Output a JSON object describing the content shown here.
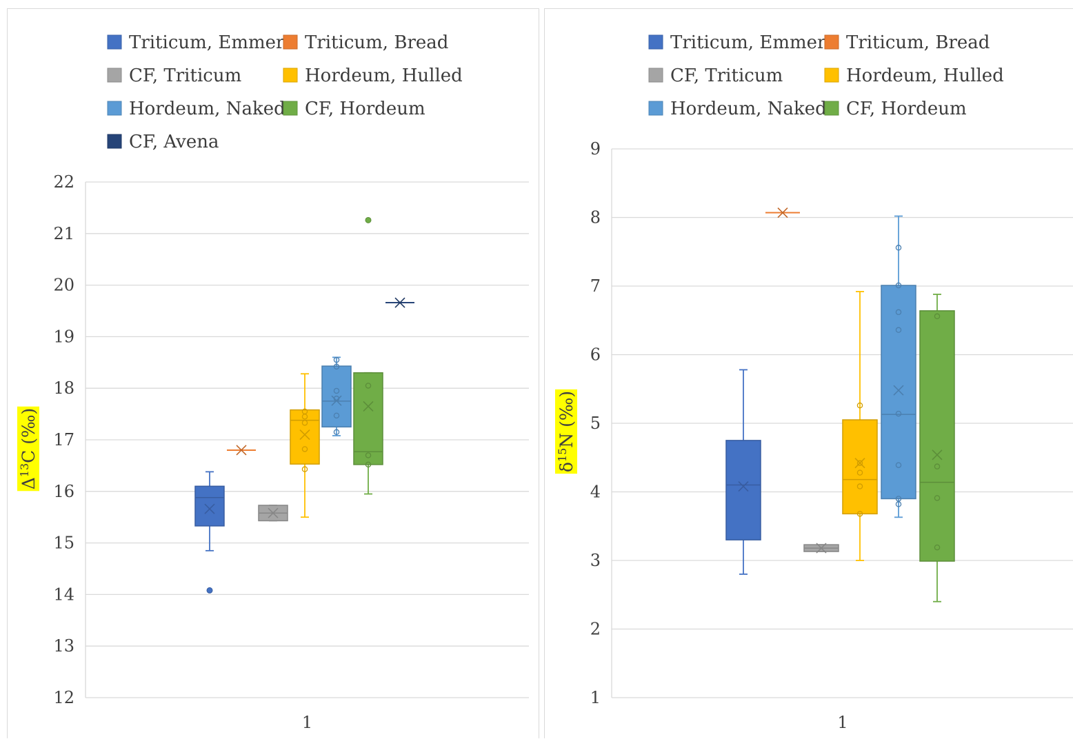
{
  "chart_data": [
    {
      "type": "box",
      "ylabel": "Δ13C (‰)",
      "ylabel_main": "Δ",
      "ylabel_sup": "13",
      "ylabel_rest": "C (‰)",
      "ylabel_highlight": "#ffff00",
      "ylim": [
        12,
        22
      ],
      "yticks": [
        "12",
        "13",
        "14",
        "15",
        "16",
        "17",
        "18",
        "19",
        "20",
        "21",
        "22"
      ],
      "categories": [
        "1"
      ],
      "grid": true,
      "legend_position": "top",
      "legend": [
        "Triticum, Emmer",
        "Triticum, Bread",
        "CF, Triticum",
        "Hordeum, Hulled",
        "Hordeum, Naked",
        "CF, Hordeum",
        "CF, Avena"
      ],
      "series": [
        {
          "name": "Triticum, Emmer",
          "color": "#4472c4",
          "min": 14.85,
          "q1": 15.33,
          "median": 15.88,
          "q3": 16.1,
          "max": 16.38,
          "mean": 15.66,
          "points": [],
          "outliers": [
            14.08
          ]
        },
        {
          "name": "Triticum, Bread",
          "color": "#ed7d31",
          "min": 16.8,
          "q1": 16.8,
          "median": 16.8,
          "q3": 16.8,
          "max": 16.8,
          "mean": 16.8,
          "points": [],
          "outliers": []
        },
        {
          "name": "CF, Triticum",
          "color": "#a5a5a5",
          "min": 15.43,
          "q1": 15.43,
          "median": 15.58,
          "q3": 15.73,
          "max": 15.73,
          "mean": 15.58,
          "points": [],
          "outliers": []
        },
        {
          "name": "Hordeum, Hulled",
          "color": "#ffc000",
          "min": 15.5,
          "q1": 16.53,
          "median": 17.38,
          "q3": 17.58,
          "max": 18.28,
          "mean": 17.1,
          "points": [
            17.55,
            17.45,
            17.33,
            16.82,
            16.43
          ],
          "outliers": []
        },
        {
          "name": "Hordeum, Naked",
          "color": "#5b9bd5",
          "min": 17.08,
          "q1": 17.25,
          "median": 17.75,
          "q3": 18.43,
          "max": 18.6,
          "mean": 17.76,
          "points": [
            18.55,
            18.42,
            17.95,
            17.8,
            17.47,
            17.15
          ],
          "outliers": []
        },
        {
          "name": "CF, Hordeum",
          "color": "#70ad47",
          "min": 15.95,
          "q1": 16.52,
          "median": 16.77,
          "q3": 18.3,
          "max": 18.3,
          "mean": 17.65,
          "points": [
            18.05,
            16.7,
            16.52
          ],
          "outliers": [
            21.26
          ]
        },
        {
          "name": "CF, Avena",
          "color": "#264478",
          "min": 19.66,
          "q1": 19.66,
          "median": 19.66,
          "q3": 19.66,
          "max": 19.66,
          "mean": 19.66,
          "points": [],
          "outliers": []
        }
      ]
    },
    {
      "type": "box",
      "ylabel": "δ15N (‰)",
      "ylabel_main": "δ",
      "ylabel_sup": "15",
      "ylabel_rest": "N (‰)",
      "ylabel_highlight": "#ffff00",
      "ylim": [
        1,
        9
      ],
      "yticks": [
        "1",
        "2",
        "3",
        "4",
        "5",
        "6",
        "7",
        "8",
        "9"
      ],
      "categories": [
        "1"
      ],
      "grid": true,
      "legend_position": "top",
      "legend": [
        "Triticum, Emmer",
        "Triticum, Bread",
        "CF, Triticum",
        "Hordeum, Hulled",
        "Hordeum, Naked",
        "CF, Hordeum"
      ],
      "series": [
        {
          "name": "Triticum, Emmer",
          "color": "#4472c4",
          "min": 2.8,
          "q1": 3.3,
          "median": 4.1,
          "q3": 4.75,
          "max": 5.78,
          "mean": 4.08,
          "points": [],
          "outliers": []
        },
        {
          "name": "Triticum, Bread",
          "color": "#ed7d31",
          "min": 8.07,
          "q1": 8.07,
          "median": 8.07,
          "q3": 8.07,
          "max": 8.07,
          "mean": 8.07,
          "points": [],
          "outliers": []
        },
        {
          "name": "CF, Triticum",
          "color": "#a5a5a5",
          "min": 3.13,
          "q1": 3.13,
          "median": 3.18,
          "q3": 3.23,
          "max": 3.23,
          "mean": 3.18,
          "points": [],
          "outliers": []
        },
        {
          "name": "Hordeum, Hulled",
          "color": "#ffc000",
          "min": 3.0,
          "q1": 3.68,
          "median": 4.18,
          "q3": 5.05,
          "max": 6.92,
          "mean": 4.42,
          "points": [
            5.26,
            4.42,
            4.28,
            4.08,
            3.68
          ],
          "outliers": []
        },
        {
          "name": "Hordeum, Naked",
          "color": "#5b9bd5",
          "min": 3.63,
          "q1": 3.9,
          "median": 5.13,
          "q3": 7.01,
          "max": 8.02,
          "mean": 5.48,
          "points": [
            7.56,
            7.01,
            6.62,
            6.36,
            5.14,
            4.39,
            3.9,
            3.82
          ],
          "outliers": []
        },
        {
          "name": "CF, Hordeum",
          "color": "#70ad47",
          "min": 2.4,
          "q1": 2.99,
          "median": 4.14,
          "q3": 6.64,
          "max": 6.88,
          "mean": 4.54,
          "points": [
            6.56,
            4.37,
            3.91,
            3.19
          ],
          "outliers": []
        }
      ]
    }
  ]
}
